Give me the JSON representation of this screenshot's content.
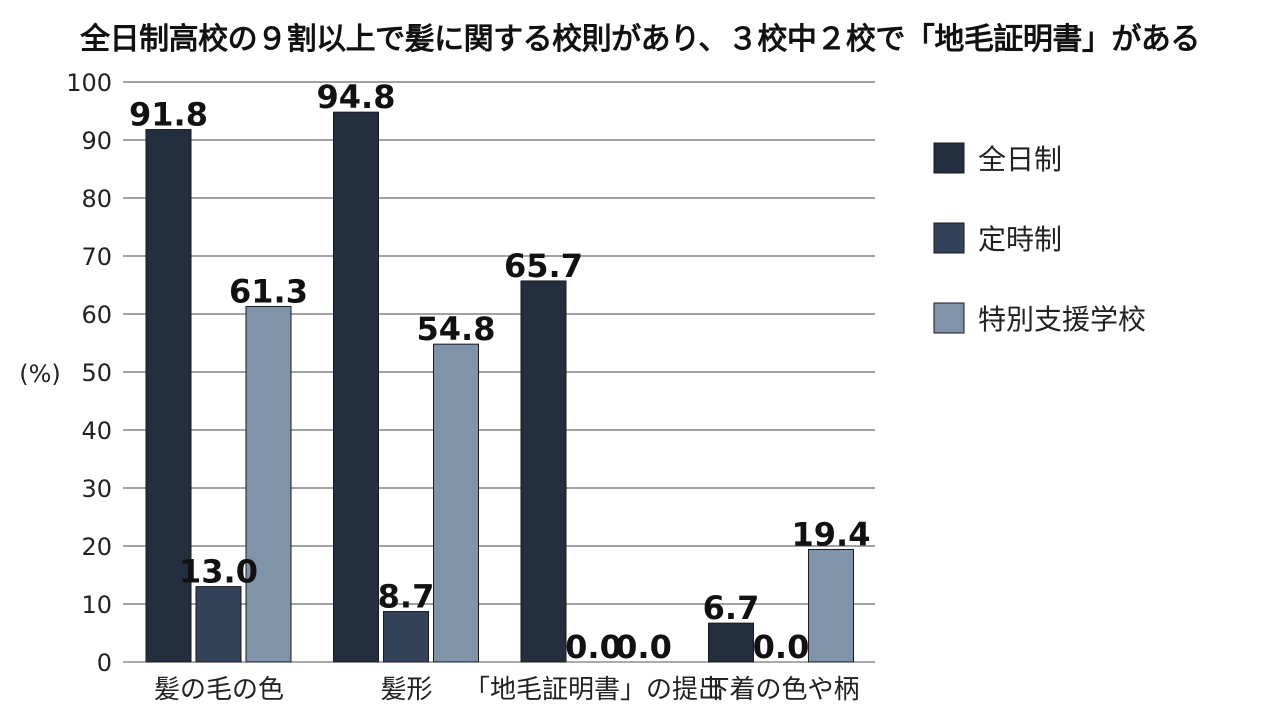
{
  "chart_data": {
    "type": "bar",
    "title": "全日制高校の９割以上で髪に関する校則があり、３校中２校で「地毛証明書」がある",
    "xlabel": "",
    "ylabel": "(%)",
    "ylim": [
      0,
      100
    ],
    "yticks": [
      0,
      10,
      20,
      30,
      40,
      50,
      60,
      70,
      80,
      90,
      100
    ],
    "grid": true,
    "legend_position": "right",
    "categories": [
      "髪の毛の色",
      "髪形",
      "「地毛証明書」の提出",
      "下着の色や柄"
    ],
    "series": [
      {
        "name": "全日制",
        "color": "#232e3f",
        "values": [
          91.8,
          94.8,
          65.7,
          6.7
        ],
        "labels": [
          "91.8",
          "94.8",
          "65.7",
          "6.7"
        ]
      },
      {
        "name": "定時制",
        "color": "#34435a",
        "values": [
          13.0,
          8.7,
          0.0,
          0.0
        ],
        "labels": [
          "13.0",
          "8.7",
          "0.0",
          "0.0"
        ]
      },
      {
        "name": "特別支援学校",
        "color": "#7f93a9",
        "values": [
          61.3,
          54.8,
          0.0,
          19.4
        ],
        "labels": [
          "61.3",
          "54.8",
          "0.0",
          "19.4"
        ]
      }
    ]
  }
}
